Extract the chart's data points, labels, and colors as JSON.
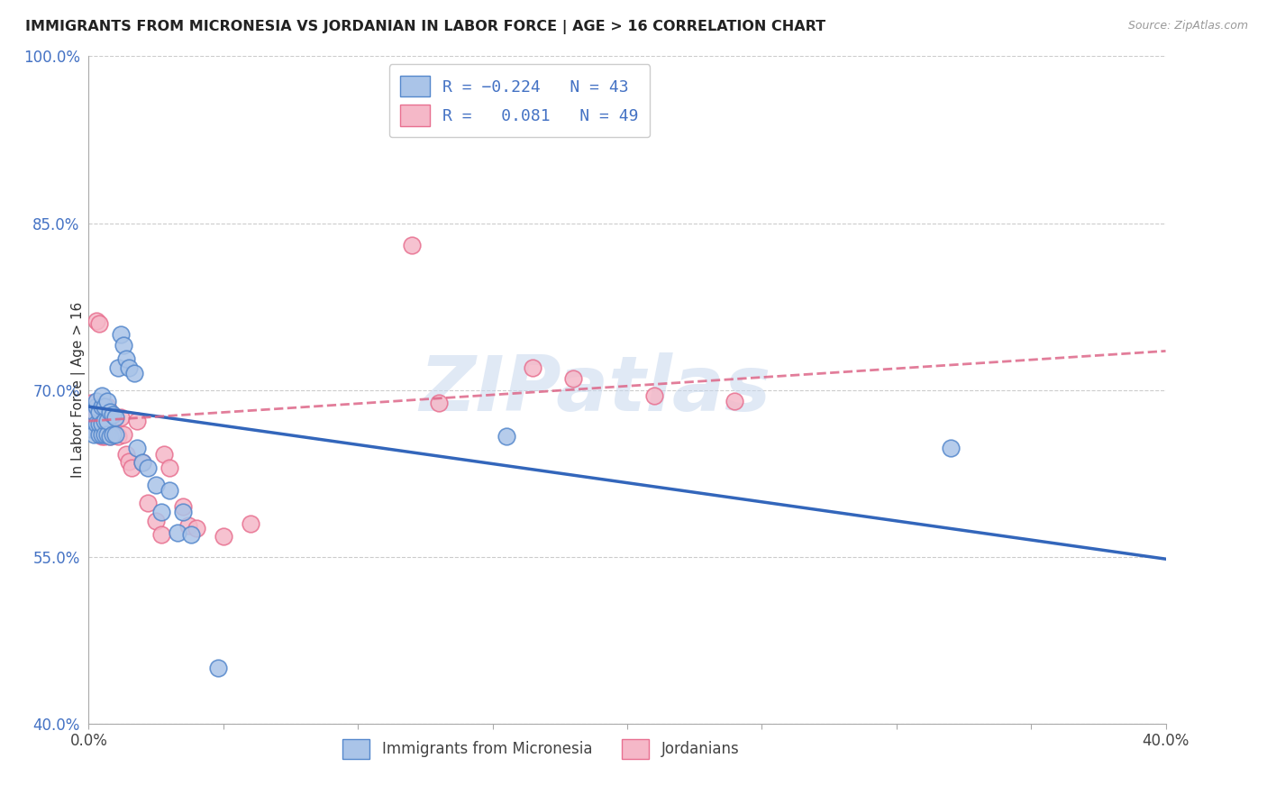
{
  "title": "IMMIGRANTS FROM MICRONESIA VS JORDANIAN IN LABOR FORCE | AGE > 16 CORRELATION CHART",
  "source_text": "Source: ZipAtlas.com",
  "ylabel": "In Labor Force | Age > 16",
  "xlim": [
    0.0,
    0.4
  ],
  "ylim": [
    0.4,
    1.0
  ],
  "yticks": [
    0.4,
    0.55,
    0.7,
    0.85,
    1.0
  ],
  "ytick_labels": [
    "40.0%",
    "55.0%",
    "70.0%",
    "85.0%",
    "100.0%"
  ],
  "xtick_positions": [
    0.0,
    0.05,
    0.1,
    0.15,
    0.2,
    0.25,
    0.3,
    0.35,
    0.4
  ],
  "xtick_labels_show": [
    "0.0%",
    "",
    "",
    "",
    "",
    "",
    "",
    "",
    "40.0%"
  ],
  "blue_fill": "#aac4e8",
  "pink_fill": "#f5b8c8",
  "blue_edge": "#5588cc",
  "pink_edge": "#e87090",
  "blue_line_color": "#3366bb",
  "pink_line_color": "#dd6688",
  "watermark": "ZIPatlas",
  "blue_trend_x0": 0.0,
  "blue_trend_y0": 0.685,
  "blue_trend_x1": 0.4,
  "blue_trend_y1": 0.548,
  "pink_trend_x0": 0.0,
  "pink_trend_y0": 0.672,
  "pink_trend_x1": 0.4,
  "pink_trend_y1": 0.735,
  "blue_scatter_x": [
    0.001,
    0.002,
    0.002,
    0.003,
    0.003,
    0.003,
    0.004,
    0.004,
    0.004,
    0.005,
    0.005,
    0.005,
    0.005,
    0.006,
    0.006,
    0.006,
    0.007,
    0.007,
    0.007,
    0.008,
    0.008,
    0.009,
    0.009,
    0.01,
    0.01,
    0.011,
    0.012,
    0.013,
    0.014,
    0.015,
    0.017,
    0.018,
    0.02,
    0.022,
    0.025,
    0.027,
    0.03,
    0.033,
    0.035,
    0.038,
    0.048,
    0.155,
    0.32
  ],
  "blue_scatter_y": [
    0.665,
    0.66,
    0.68,
    0.67,
    0.685,
    0.69,
    0.66,
    0.67,
    0.68,
    0.66,
    0.67,
    0.685,
    0.695,
    0.66,
    0.672,
    0.685,
    0.66,
    0.672,
    0.69,
    0.658,
    0.68,
    0.66,
    0.678,
    0.66,
    0.675,
    0.72,
    0.75,
    0.74,
    0.728,
    0.72,
    0.715,
    0.648,
    0.635,
    0.63,
    0.615,
    0.59,
    0.61,
    0.572,
    0.59,
    0.57,
    0.45,
    0.658,
    0.648
  ],
  "pink_scatter_x": [
    0.001,
    0.001,
    0.002,
    0.002,
    0.003,
    0.003,
    0.003,
    0.004,
    0.004,
    0.004,
    0.005,
    0.005,
    0.005,
    0.006,
    0.006,
    0.006,
    0.007,
    0.007,
    0.007,
    0.008,
    0.008,
    0.009,
    0.009,
    0.01,
    0.01,
    0.011,
    0.012,
    0.013,
    0.014,
    0.015,
    0.016,
    0.018,
    0.02,
    0.022,
    0.025,
    0.027,
    0.028,
    0.03,
    0.035,
    0.037,
    0.04,
    0.05,
    0.06,
    0.12,
    0.13,
    0.165,
    0.18,
    0.21,
    0.24
  ],
  "pink_scatter_y": [
    0.67,
    0.688,
    0.665,
    0.68,
    0.668,
    0.678,
    0.762,
    0.76,
    0.672,
    0.685,
    0.658,
    0.67,
    0.685,
    0.658,
    0.668,
    0.68,
    0.66,
    0.67,
    0.685,
    0.658,
    0.672,
    0.66,
    0.678,
    0.66,
    0.675,
    0.658,
    0.675,
    0.66,
    0.642,
    0.636,
    0.63,
    0.672,
    0.635,
    0.598,
    0.582,
    0.57,
    0.642,
    0.63,
    0.595,
    0.578,
    0.576,
    0.568,
    0.58,
    0.83,
    0.688,
    0.72,
    0.71,
    0.695,
    0.69
  ]
}
